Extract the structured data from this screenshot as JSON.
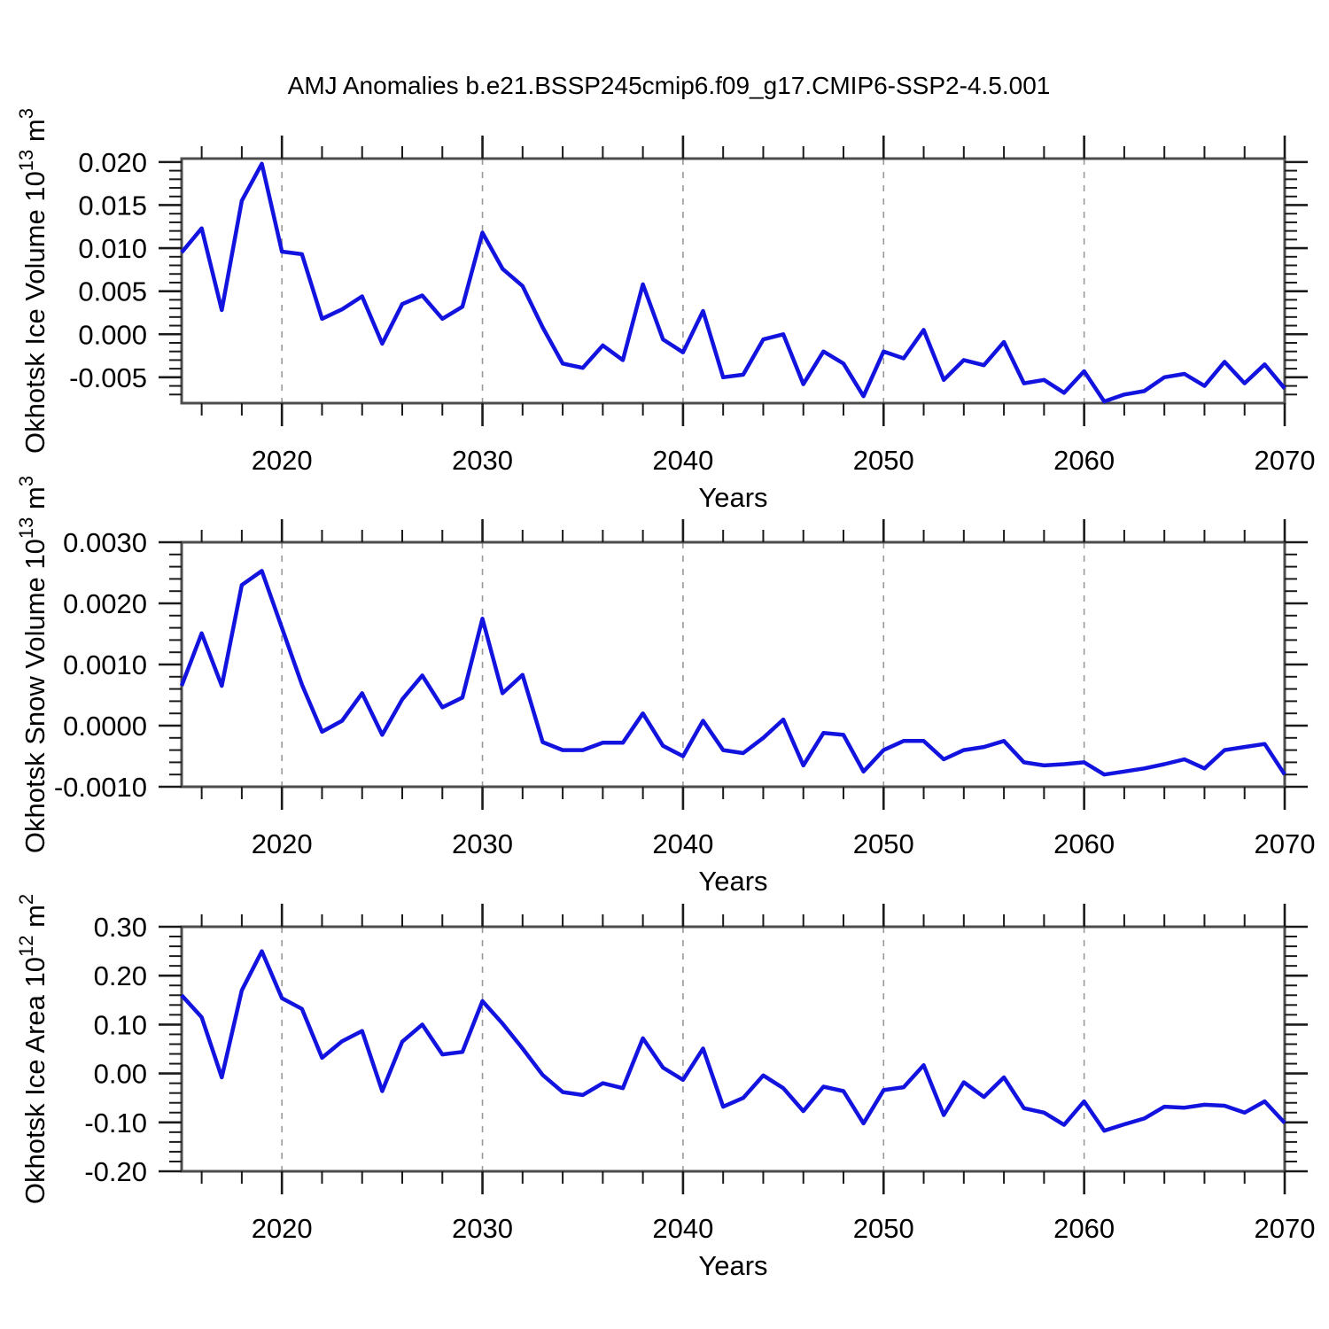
{
  "title": "AMJ Anomalies b.e21.BSSP245cmip6.f09_g17.CMIP6-SSP2-4.5.001",
  "colors": {
    "line": "#1313e0",
    "grid": "#999999",
    "frame": "#4d4d4d",
    "tick": "#1a1a1a",
    "text": "#000000",
    "background": "#ffffff"
  },
  "x_axis": {
    "label": "Years",
    "range": [
      2015,
      2070
    ],
    "major_ticks": [
      2020,
      2030,
      2040,
      2050,
      2060,
      2070
    ],
    "major_tick_labels": [
      "2020",
      "2030",
      "2040",
      "2050",
      "2060",
      "2070"
    ],
    "minor_step": 2,
    "grid_years": [
      2020,
      2030,
      2040,
      2050,
      2060
    ]
  },
  "chart_data": [
    {
      "type": "line",
      "name": "okhotsk-ice-volume",
      "ylabel": "Okhotsk Ice Volume 10^13 m^3",
      "ylim": [
        -0.008,
        0.0204
      ],
      "yticks": [
        {
          "v": 0.02,
          "label": "0.020"
        },
        {
          "v": 0.015,
          "label": "0.015"
        },
        {
          "v": 0.01,
          "label": "0.010"
        },
        {
          "v": 0.005,
          "label": "0.005"
        },
        {
          "v": 0.0,
          "label": "0.000"
        },
        {
          "v": -0.005,
          "label": "-0.005"
        }
      ],
      "minor_step": 0.001,
      "x": [
        2015,
        2016,
        2017,
        2018,
        2019,
        2020,
        2021,
        2022,
        2023,
        2024,
        2025,
        2026,
        2027,
        2028,
        2029,
        2030,
        2031,
        2032,
        2033,
        2034,
        2035,
        2036,
        2037,
        2038,
        2039,
        2040,
        2041,
        2042,
        2043,
        2044,
        2045,
        2046,
        2047,
        2048,
        2049,
        2050,
        2051,
        2052,
        2053,
        2054,
        2055,
        2056,
        2057,
        2058,
        2059,
        2060,
        2061,
        2062,
        2063,
        2064,
        2065,
        2066,
        2067,
        2068,
        2069,
        2070
      ],
      "values": [
        0.0095,
        0.0123,
        0.0028,
        0.0155,
        0.0198,
        0.0096,
        0.0093,
        0.0018,
        0.0029,
        0.0044,
        -0.0011,
        0.0035,
        0.0045,
        0.0018,
        0.0032,
        0.0118,
        0.0076,
        0.0056,
        0.0008,
        -0.0034,
        -0.0039,
        -0.0013,
        -0.003,
        0.0058,
        -0.0006,
        -0.0021,
        0.0027,
        -0.005,
        -0.0047,
        -0.0006,
        0.0,
        -0.0058,
        -0.002,
        -0.0034,
        -0.0072,
        -0.002,
        -0.0028,
        0.0005,
        -0.0053,
        -0.003,
        -0.0036,
        -0.0009,
        -0.0057,
        -0.0053,
        -0.0068,
        -0.0043,
        -0.0078,
        -0.007,
        -0.0066,
        -0.005,
        -0.0046,
        -0.006,
        -0.0032,
        -0.0057,
        -0.0035,
        -0.0063
      ]
    },
    {
      "type": "line",
      "name": "okhotsk-snow-volume",
      "ylabel": "Okhotsk Snow Volume 10^13 m^3",
      "ylim": [
        -0.001,
        0.003
      ],
      "yticks": [
        {
          "v": 0.003,
          "label": "0.0030"
        },
        {
          "v": 0.002,
          "label": "0.0020"
        },
        {
          "v": 0.001,
          "label": "0.0010"
        },
        {
          "v": 0.0,
          "label": "0.0000"
        },
        {
          "v": -0.001,
          "label": "-0.0010"
        }
      ],
      "minor_step": 0.0002,
      "x": [
        2015,
        2016,
        2017,
        2018,
        2019,
        2020,
        2021,
        2022,
        2023,
        2024,
        2025,
        2026,
        2027,
        2028,
        2029,
        2030,
        2031,
        2032,
        2033,
        2034,
        2035,
        2036,
        2037,
        2038,
        2039,
        2040,
        2041,
        2042,
        2043,
        2044,
        2045,
        2046,
        2047,
        2048,
        2049,
        2050,
        2051,
        2052,
        2053,
        2054,
        2055,
        2056,
        2057,
        2058,
        2059,
        2060,
        2061,
        2062,
        2063,
        2064,
        2065,
        2066,
        2067,
        2068,
        2069,
        2070
      ],
      "values": [
        0.00065,
        0.00151,
        0.00065,
        0.0023,
        0.00253,
        0.0016,
        0.00067,
        -0.0001,
        8e-05,
        0.00053,
        -0.00015,
        0.00043,
        0.00082,
        0.0003,
        0.00046,
        0.00175,
        0.00053,
        0.00083,
        -0.00027,
        -0.0004,
        -0.0004,
        -0.00028,
        -0.00028,
        0.0002,
        -0.00033,
        -0.0005,
        8e-05,
        -0.0004,
        -0.00045,
        -0.0002,
        0.0001,
        -0.00065,
        -0.00012,
        -0.00015,
        -0.00075,
        -0.0004,
        -0.00025,
        -0.00025,
        -0.00055,
        -0.0004,
        -0.00035,
        -0.00025,
        -0.0006,
        -0.00065,
        -0.00063,
        -0.0006,
        -0.0008,
        -0.00075,
        -0.0007,
        -0.00063,
        -0.00055,
        -0.0007,
        -0.0004,
        -0.00035,
        -0.0003,
        -0.0008
      ]
    },
    {
      "type": "line",
      "name": "okhotsk-ice-area",
      "ylabel": "Okhotsk Ice Area 10^12 m^2",
      "ylim": [
        -0.2,
        0.3
      ],
      "yticks": [
        {
          "v": 0.3,
          "label": "0.30"
        },
        {
          "v": 0.2,
          "label": "0.20"
        },
        {
          "v": 0.1,
          "label": "0.10"
        },
        {
          "v": 0.0,
          "label": "0.00"
        },
        {
          "v": -0.1,
          "label": "-0.10"
        },
        {
          "v": -0.2,
          "label": "-0.20"
        }
      ],
      "minor_step": 0.02,
      "x": [
        2015,
        2016,
        2017,
        2018,
        2019,
        2020,
        2021,
        2022,
        2023,
        2024,
        2025,
        2026,
        2027,
        2028,
        2029,
        2030,
        2031,
        2032,
        2033,
        2034,
        2035,
        2036,
        2037,
        2038,
        2039,
        2040,
        2041,
        2042,
        2043,
        2044,
        2045,
        2046,
        2047,
        2048,
        2049,
        2050,
        2051,
        2052,
        2053,
        2054,
        2055,
        2056,
        2057,
        2058,
        2059,
        2060,
        2061,
        2062,
        2063,
        2064,
        2065,
        2066,
        2067,
        2068,
        2069,
        2070
      ],
      "values": [
        0.16,
        0.115,
        -0.008,
        0.17,
        0.25,
        0.154,
        0.132,
        0.032,
        0.066,
        0.087,
        -0.036,
        0.065,
        0.1,
        0.039,
        0.044,
        0.148,
        0.102,
        0.051,
        -0.003,
        -0.038,
        -0.044,
        -0.02,
        -0.03,
        0.072,
        0.012,
        -0.013,
        0.051,
        -0.068,
        -0.05,
        -0.004,
        -0.03,
        -0.077,
        -0.027,
        -0.036,
        -0.102,
        -0.034,
        -0.028,
        0.017,
        -0.085,
        -0.018,
        -0.048,
        -0.008,
        -0.071,
        -0.08,
        -0.105,
        -0.057,
        -0.117,
        -0.104,
        -0.092,
        -0.068,
        -0.07,
        -0.064,
        -0.066,
        -0.08,
        -0.057,
        -0.101
      ]
    }
  ]
}
